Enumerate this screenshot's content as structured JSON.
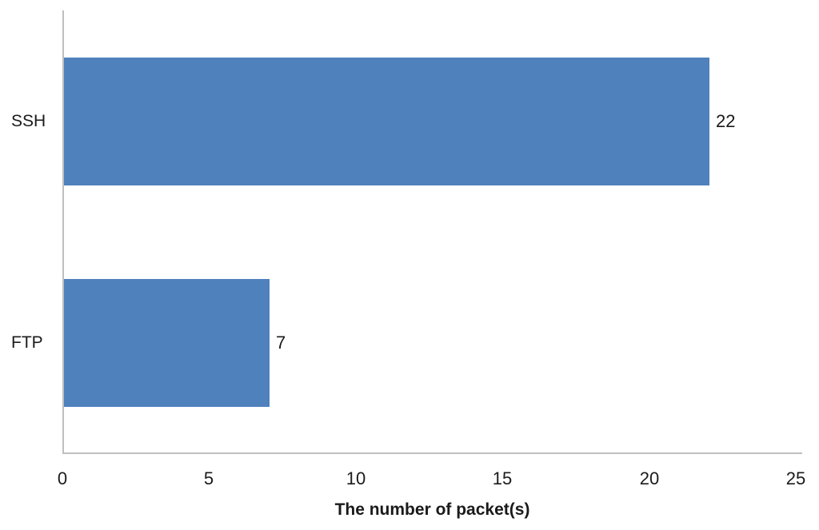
{
  "chart_data": {
    "type": "bar",
    "orientation": "horizontal",
    "categories": [
      "SSH",
      "FTP"
    ],
    "values": [
      22,
      7
    ],
    "data_labels": [
      "22",
      "7"
    ],
    "title": "",
    "xlabel": "The number of packet(s)",
    "ylabel": "",
    "xlim": [
      0,
      25
    ],
    "xticks": [
      "0",
      "5",
      "10",
      "15",
      "20",
      "25"
    ],
    "grid": false,
    "legend": "none",
    "bar_color": "#4f81bd",
    "axis_line_color": "#bfbfbf",
    "text_color": "#1a1a1a",
    "background_color": "#ffffff"
  }
}
